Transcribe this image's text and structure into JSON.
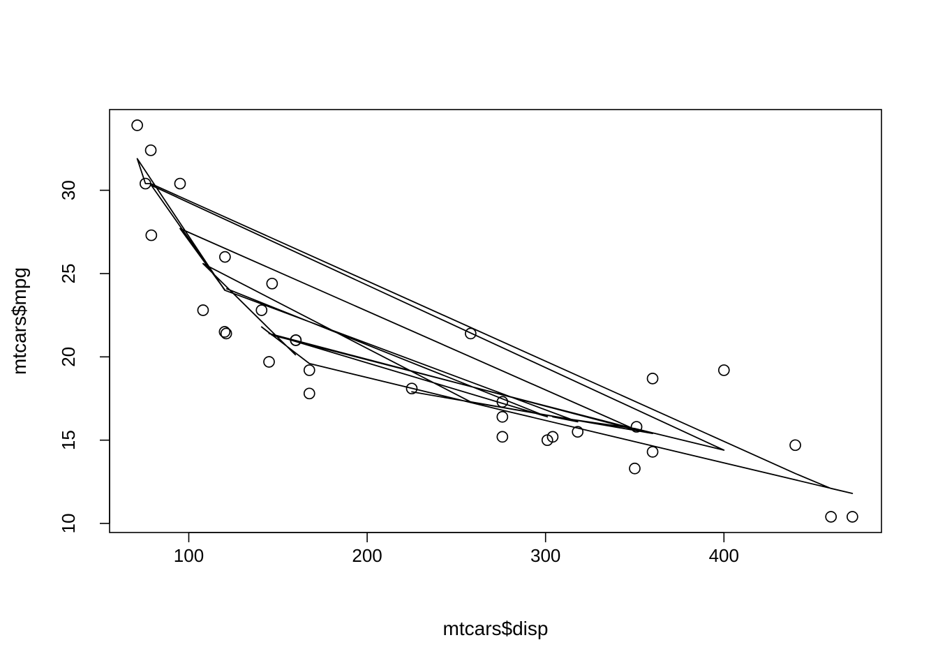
{
  "chart_data": {
    "type": "scatter",
    "xlabel": "mtcars$disp",
    "ylabel": "mtcars$mpg",
    "xlim": [
      55.6,
      488.3
    ],
    "ylim": [
      9.456,
      34.844
    ],
    "x_ticks": [
      100,
      200,
      300,
      400
    ],
    "x_tick_labels": [
      "100",
      "200",
      "300",
      "400"
    ],
    "y_ticks": [
      10,
      15,
      20,
      25,
      30
    ],
    "y_tick_labels": [
      "10",
      "15",
      "20",
      "25",
      "30"
    ],
    "grid": false,
    "legend": "none",
    "points": {
      "x": [
        160,
        160,
        108,
        258,
        360,
        225,
        360,
        146.7,
        140.8,
        167.6,
        167.6,
        275.8,
        275.8,
        275.8,
        472,
        460,
        440,
        78.7,
        75.7,
        71.1,
        120.1,
        318,
        304,
        350,
        400,
        79,
        120.3,
        95.1,
        351,
        145,
        301,
        121
      ],
      "y": [
        21.0,
        21.0,
        22.8,
        21.4,
        18.7,
        18.1,
        14.3,
        24.4,
        22.8,
        19.2,
        17.8,
        16.4,
        17.3,
        15.2,
        10.4,
        10.4,
        14.7,
        32.4,
        30.4,
        33.9,
        21.5,
        15.5,
        15.2,
        13.3,
        19.2,
        27.3,
        26.0,
        30.4,
        15.8,
        19.7,
        15.0,
        21.4
      ]
    },
    "line": {
      "x": [
        160,
        160,
        108,
        258,
        360,
        225,
        360,
        146.7,
        140.8,
        167.6,
        167.6,
        275.8,
        275.8,
        275.8,
        472,
        460,
        440,
        78.7,
        75.7,
        71.1,
        120.1,
        318,
        304,
        350,
        400,
        79,
        120.3,
        95.1,
        351,
        145,
        301,
        121
      ],
      "y": [
        20.1,
        20.1,
        25.6,
        17.3,
        15.4,
        17.9,
        15.4,
        21.3,
        21.8,
        19.6,
        19.6,
        16.8,
        16.8,
        16.8,
        11.8,
        12.1,
        13.0,
        30.4,
        30.4,
        31.9,
        24.0,
        16.1,
        16.4,
        15.7,
        14.4,
        30.3,
        24.0,
        27.7,
        15.6,
        21.4,
        16.4,
        24.1
      ]
    }
  }
}
